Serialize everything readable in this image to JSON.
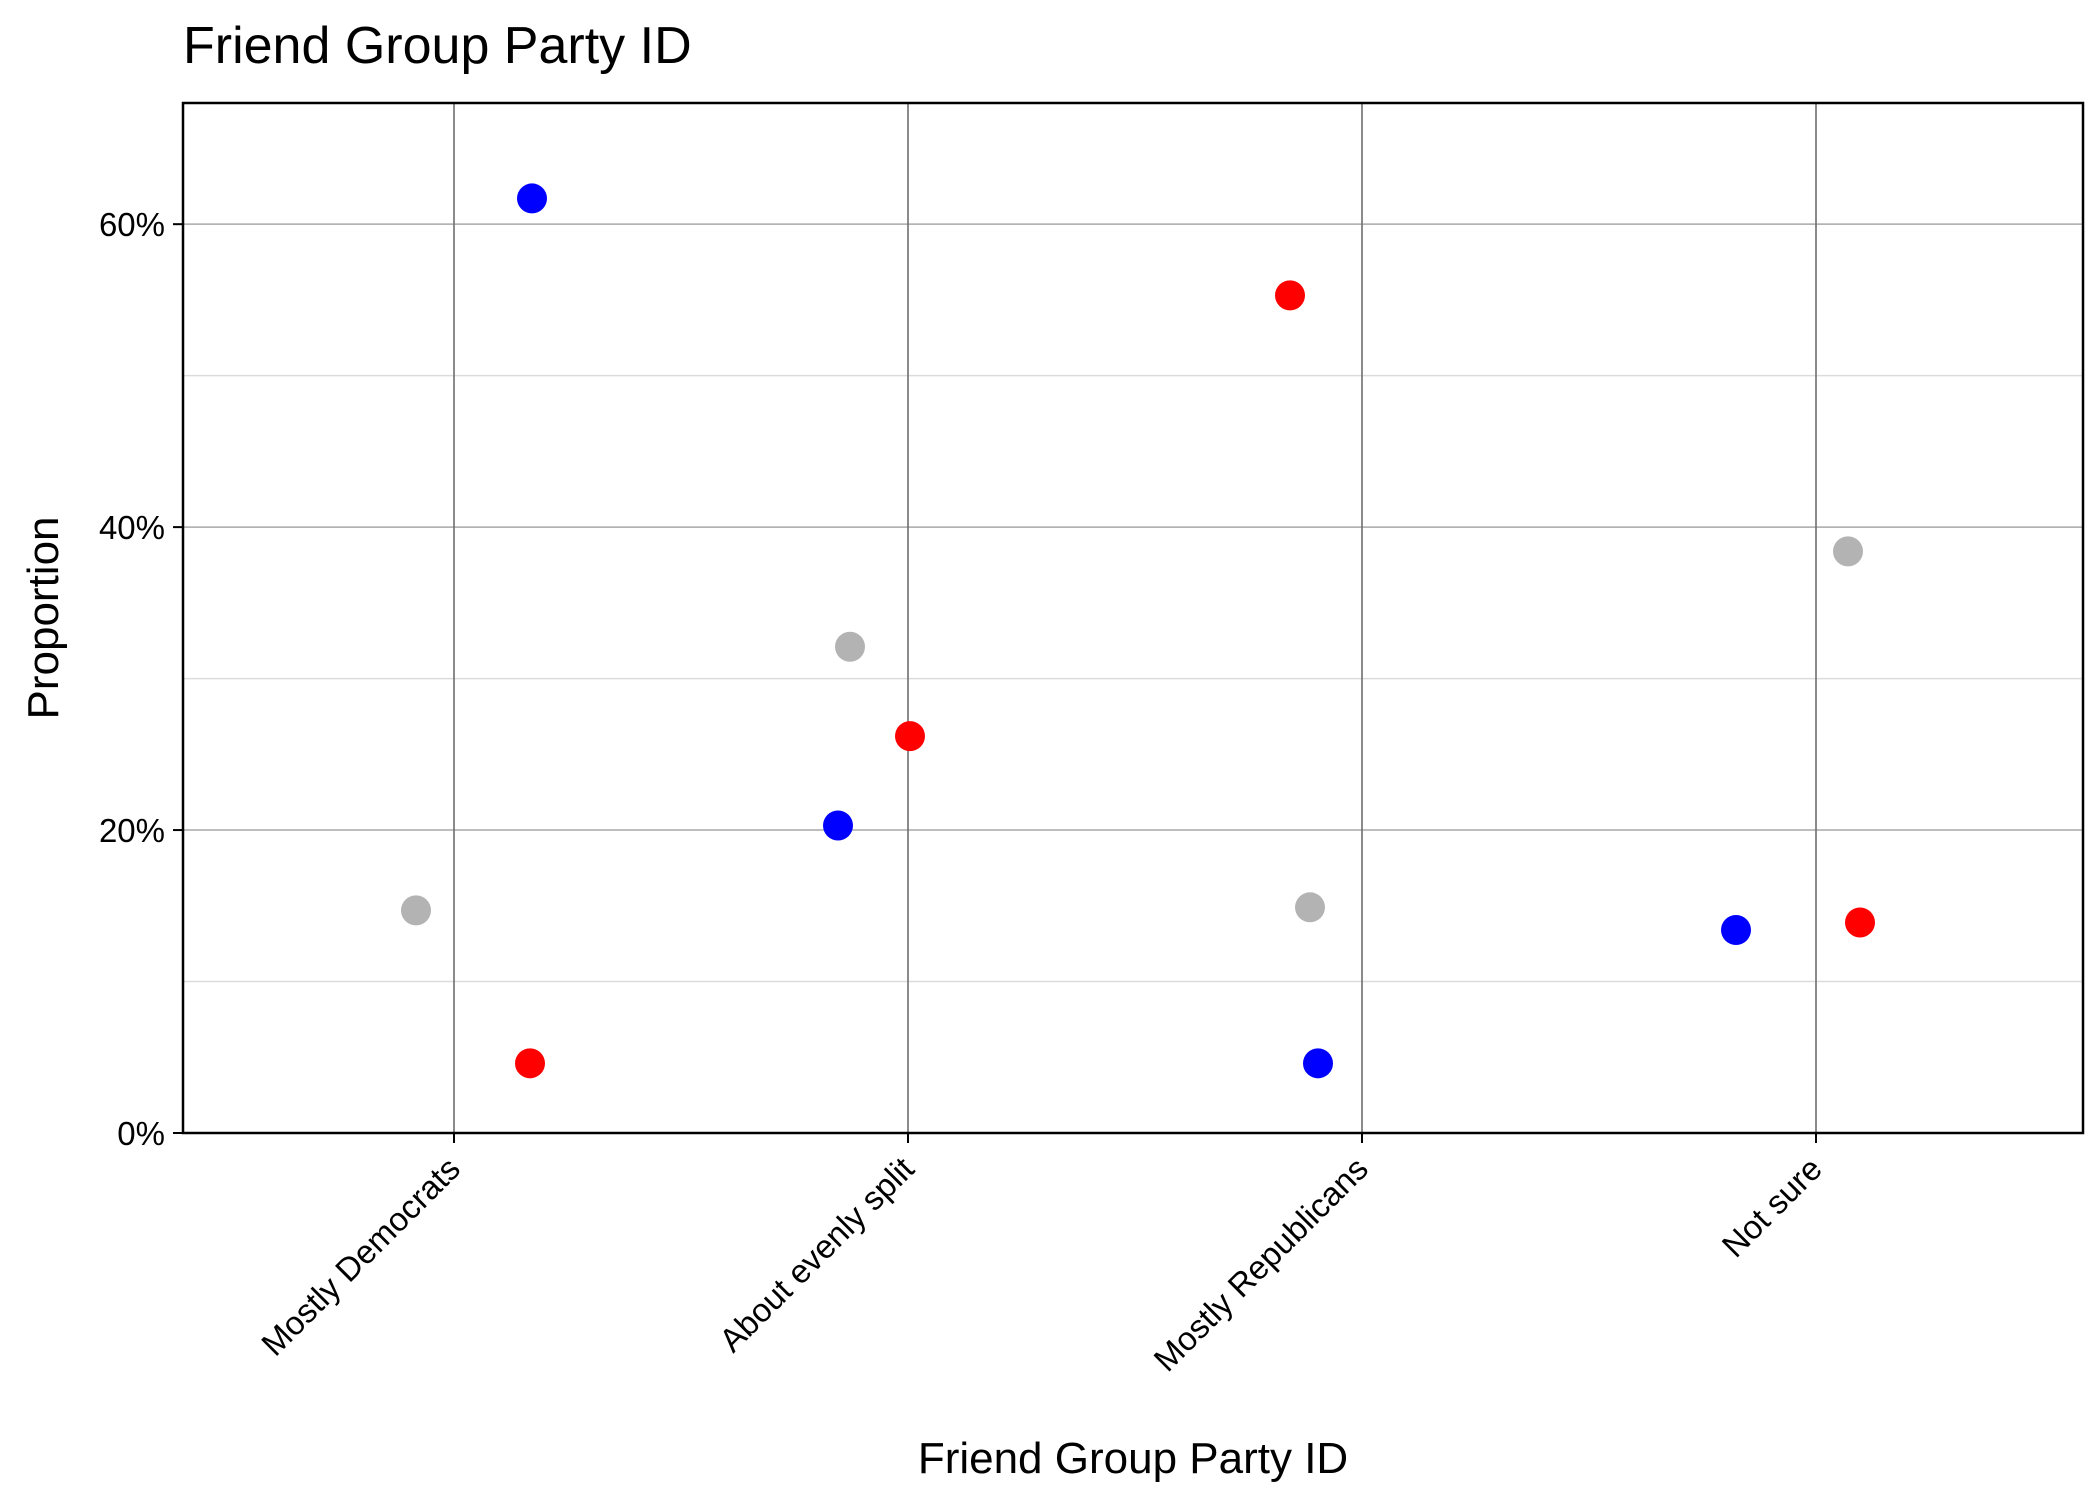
{
  "chart_data": {
    "type": "scatter",
    "title": "Friend Group Party ID",
    "xlabel": "Friend Group Party ID",
    "ylabel": "Proportion",
    "categories": [
      "Mostly Democrats",
      "About evenly split",
      "Mostly Republicans",
      "Not sure"
    ],
    "ylim": [
      0,
      0.68
    ],
    "yticks": [
      0,
      0.2,
      0.4,
      0.6
    ],
    "ytick_labels": [
      "0%",
      "20%",
      "40%",
      "60%"
    ],
    "grid": true,
    "legend": "none",
    "points": [
      {
        "category": "Mostly Democrats",
        "color": "#0000ff",
        "y": 0.617
      },
      {
        "category": "Mostly Democrats",
        "color": "#b3b3b3",
        "y": 0.147
      },
      {
        "category": "Mostly Democrats",
        "color": "#ff0000",
        "y": 0.046
      },
      {
        "category": "About evenly split",
        "color": "#b3b3b3",
        "y": 0.321
      },
      {
        "category": "About evenly split",
        "color": "#ff0000",
        "y": 0.262
      },
      {
        "category": "About evenly split",
        "color": "#0000ff",
        "y": 0.203
      },
      {
        "category": "Mostly Republicans",
        "color": "#ff0000",
        "y": 0.553
      },
      {
        "category": "Mostly Republicans",
        "color": "#b3b3b3",
        "y": 0.149
      },
      {
        "category": "Mostly Republicans",
        "color": "#0000ff",
        "y": 0.046
      },
      {
        "category": "Not sure",
        "color": "#b3b3b3",
        "y": 0.384
      },
      {
        "category": "Not sure",
        "color": "#ff0000",
        "y": 0.139
      },
      {
        "category": "Not sure",
        "color": "#0000ff",
        "y": 0.134
      }
    ]
  }
}
